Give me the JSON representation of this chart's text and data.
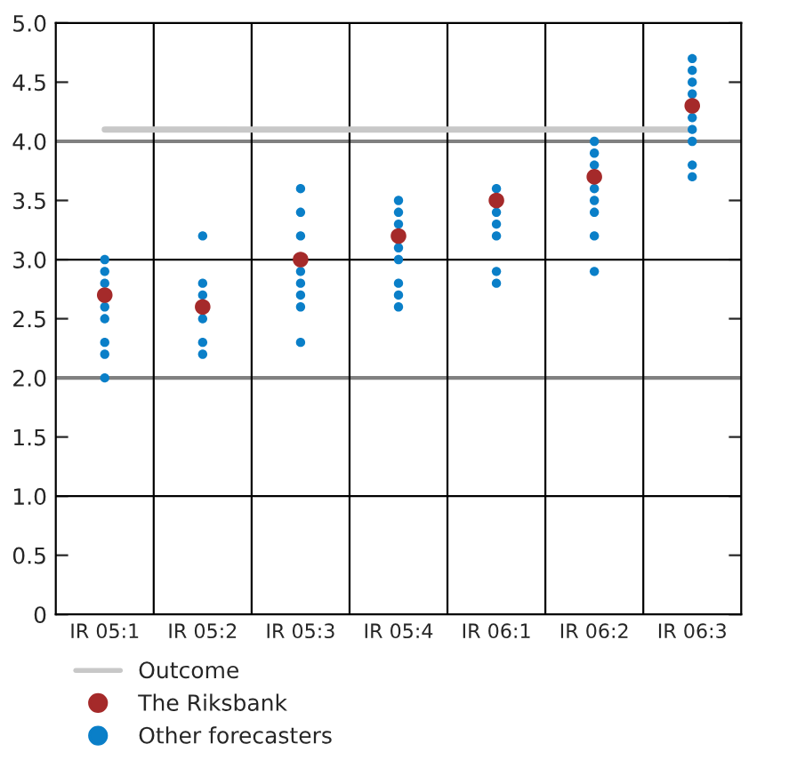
{
  "chart_data": {
    "type": "scatter",
    "categories": [
      "IR 05:1",
      "IR 05:2",
      "IR 05:3",
      "IR 05:4",
      "IR 06:1",
      "IR 06:2",
      "IR 06:3"
    ],
    "series": [
      {
        "name": "Outcome",
        "type": "line",
        "color": "#c8c8c8",
        "values": [
          4.1,
          4.1,
          4.1,
          4.1,
          4.1,
          4.1,
          4.1
        ]
      },
      {
        "name": "The Riksbank",
        "marker": "circle",
        "color": "#a52a2a",
        "x": [
          "IR 05:1",
          "IR 05:2",
          "IR 05:3",
          "IR 05:4",
          "IR 06:1",
          "IR 06:2",
          "IR 06:3"
        ],
        "values": [
          2.7,
          2.6,
          3.0,
          3.2,
          3.5,
          3.7,
          4.3
        ]
      },
      {
        "name": "Other forecasters",
        "marker": "circle",
        "color": "#0a7fc8",
        "x": [
          "IR 05:1",
          "IR 05:1",
          "IR 05:1",
          "IR 05:1",
          "IR 05:1",
          "IR 05:1",
          "IR 05:1",
          "IR 05:1",
          "IR 05:1",
          "IR 05:2",
          "IR 05:2",
          "IR 05:2",
          "IR 05:2",
          "IR 05:2",
          "IR 05:2",
          "IR 05:2",
          "IR 05:3",
          "IR 05:3",
          "IR 05:3",
          "IR 05:3",
          "IR 05:3",
          "IR 05:3",
          "IR 05:3",
          "IR 05:3",
          "IR 05:3",
          "IR 05:4",
          "IR 05:4",
          "IR 05:4",
          "IR 05:4",
          "IR 05:4",
          "IR 05:4",
          "IR 05:4",
          "IR 05:4",
          "IR 05:4",
          "IR 06:1",
          "IR 06:1",
          "IR 06:1",
          "IR 06:1",
          "IR 06:1",
          "IR 06:1",
          "IR 06:1",
          "IR 06:2",
          "IR 06:2",
          "IR 06:2",
          "IR 06:2",
          "IR 06:2",
          "IR 06:2",
          "IR 06:2",
          "IR 06:2",
          "IR 06:2",
          "IR 06:3",
          "IR 06:3",
          "IR 06:3",
          "IR 06:3",
          "IR 06:3",
          "IR 06:3",
          "IR 06:3",
          "IR 06:3",
          "IR 06:3",
          "IR 06:3"
        ],
        "values": [
          3.0,
          2.9,
          2.8,
          null,
          2.6,
          2.5,
          2.3,
          2.2,
          2.0,
          3.2,
          2.8,
          2.7,
          null,
          2.5,
          2.3,
          2.2,
          3.6,
          3.4,
          3.2,
          null,
          2.9,
          2.8,
          2.7,
          2.6,
          2.3,
          3.5,
          3.4,
          3.3,
          null,
          3.1,
          3.0,
          2.8,
          2.7,
          2.6,
          3.6,
          null,
          3.4,
          3.3,
          3.2,
          2.9,
          2.8,
          4.0,
          3.9,
          3.8,
          null,
          3.6,
          3.5,
          3.4,
          3.2,
          2.9,
          4.7,
          4.6,
          4.5,
          4.4,
          null,
          4.2,
          4.1,
          4.0,
          3.8,
          3.7
        ]
      }
    ],
    "ylim": [
      0,
      5.0
    ],
    "yticks": [
      0,
      {
        "value": 0.5,
        "label": "0.5"
      },
      {
        "value": 1,
        "label": "1.0"
      },
      {
        "value": 1.5,
        "label": "1.5"
      },
      {
        "value": 2,
        "label": "2.0"
      },
      {
        "value": 2.5,
        "label": "2.5"
      },
      {
        "value": 3,
        "label": "3.0"
      },
      {
        "value": 3.5,
        "label": "3.5"
      },
      {
        "value": 4,
        "label": "4.0"
      },
      {
        "value": 4.5,
        "label": "4.5"
      },
      {
        "value": 5,
        "label": "5.0"
      }
    ],
    "ref_lines": [
      {
        "axis": "y",
        "value": 1,
        "color": "#000000"
      },
      {
        "axis": "y",
        "value": 3,
        "color": "#000000"
      },
      {
        "axis": "y",
        "value": 2,
        "color": "#808080"
      },
      {
        "axis": "y",
        "value": 4,
        "color": "#808080"
      }
    ],
    "grid": "x",
    "legend": "bottom"
  }
}
